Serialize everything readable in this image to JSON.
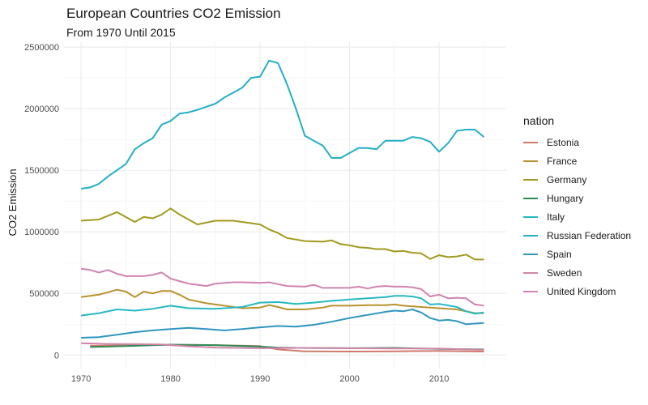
{
  "chart_data": {
    "type": "line",
    "title": "European Countries CO2 Emission",
    "subtitle": "From 1970 Until 2015",
    "xlabel": "",
    "ylabel": "CO2 Emission",
    "xlim": [
      1970,
      2015
    ],
    "ylim": [
      0,
      2500000
    ],
    "x_ticks": [
      1970,
      1980,
      1990,
      2000,
      2010
    ],
    "y_ticks": [
      0,
      500000,
      1000000,
      1500000,
      2000000,
      2500000
    ],
    "y_tick_labels": [
      "0",
      "500000",
      "1000000",
      "1500000",
      "2000000",
      "2500000"
    ],
    "grid": true,
    "legend": {
      "title": "nation",
      "position": "right"
    },
    "series": [
      {
        "name": "Estonia",
        "color": "#D2796B",
        "points": [
          [
            1971,
            75000
          ],
          [
            1975,
            78000
          ],
          [
            1980,
            82000
          ],
          [
            1985,
            80000
          ],
          [
            1990,
            72000
          ],
          [
            1992,
            45000
          ],
          [
            1995,
            30000
          ],
          [
            2000,
            28000
          ],
          [
            2005,
            30000
          ],
          [
            2010,
            33000
          ],
          [
            2015,
            28000
          ]
        ]
      },
      {
        "name": "France",
        "color": "#B9922E",
        "points": [
          [
            1970,
            470000
          ],
          [
            1972,
            490000
          ],
          [
            1974,
            530000
          ],
          [
            1975,
            515000
          ],
          [
            1976,
            470000
          ],
          [
            1977,
            515000
          ],
          [
            1978,
            500000
          ],
          [
            1979,
            520000
          ],
          [
            1980,
            520000
          ],
          [
            1981,
            490000
          ],
          [
            1982,
            450000
          ],
          [
            1984,
            420000
          ],
          [
            1986,
            400000
          ],
          [
            1988,
            380000
          ],
          [
            1990,
            385000
          ],
          [
            1991,
            405000
          ],
          [
            1992,
            390000
          ],
          [
            1993,
            370000
          ],
          [
            1995,
            370000
          ],
          [
            1997,
            385000
          ],
          [
            1998,
            400000
          ],
          [
            2000,
            400000
          ],
          [
            2002,
            405000
          ],
          [
            2004,
            405000
          ],
          [
            2005,
            410000
          ],
          [
            2006,
            400000
          ],
          [
            2008,
            390000
          ],
          [
            2010,
            380000
          ],
          [
            2012,
            370000
          ],
          [
            2014,
            340000
          ],
          [
            2015,
            340000
          ]
        ]
      },
      {
        "name": "Germany",
        "color": "#A29A1E",
        "points": [
          [
            1970,
            1090000
          ],
          [
            1972,
            1100000
          ],
          [
            1973,
            1130000
          ],
          [
            1974,
            1160000
          ],
          [
            1975,
            1120000
          ],
          [
            1976,
            1080000
          ],
          [
            1977,
            1120000
          ],
          [
            1978,
            1110000
          ],
          [
            1979,
            1140000
          ],
          [
            1980,
            1190000
          ],
          [
            1981,
            1140000
          ],
          [
            1982,
            1100000
          ],
          [
            1983,
            1060000
          ],
          [
            1985,
            1090000
          ],
          [
            1987,
            1090000
          ],
          [
            1988,
            1080000
          ],
          [
            1990,
            1060000
          ],
          [
            1991,
            1020000
          ],
          [
            1992,
            990000
          ],
          [
            1993,
            950000
          ],
          [
            1995,
            925000
          ],
          [
            1997,
            920000
          ],
          [
            1998,
            930000
          ],
          [
            1999,
            900000
          ],
          [
            2000,
            890000
          ],
          [
            2001,
            875000
          ],
          [
            2002,
            870000
          ],
          [
            2003,
            860000
          ],
          [
            2004,
            860000
          ],
          [
            2005,
            840000
          ],
          [
            2006,
            845000
          ],
          [
            2007,
            830000
          ],
          [
            2008,
            825000
          ],
          [
            2009,
            780000
          ],
          [
            2010,
            810000
          ],
          [
            2011,
            795000
          ],
          [
            2012,
            800000
          ],
          [
            2013,
            815000
          ],
          [
            2014,
            775000
          ],
          [
            2015,
            775000
          ]
        ]
      },
      {
        "name": "Hungary",
        "color": "#2E8B57",
        "points": [
          [
            1971,
            65000
          ],
          [
            1975,
            72000
          ],
          [
            1980,
            84000
          ],
          [
            1985,
            80000
          ],
          [
            1990,
            68000
          ],
          [
            1992,
            60000
          ],
          [
            1995,
            57000
          ],
          [
            2000,
            55000
          ],
          [
            2005,
            58000
          ],
          [
            2010,
            50000
          ],
          [
            2015,
            45000
          ]
        ]
      },
      {
        "name": "Italy",
        "color": "#26B8C2",
        "points": [
          [
            1970,
            320000
          ],
          [
            1972,
            340000
          ],
          [
            1974,
            370000
          ],
          [
            1976,
            360000
          ],
          [
            1978,
            375000
          ],
          [
            1980,
            400000
          ],
          [
            1982,
            380000
          ],
          [
            1985,
            375000
          ],
          [
            1988,
            390000
          ],
          [
            1990,
            425000
          ],
          [
            1992,
            430000
          ],
          [
            1994,
            415000
          ],
          [
            1996,
            425000
          ],
          [
            1998,
            440000
          ],
          [
            2000,
            450000
          ],
          [
            2002,
            460000
          ],
          [
            2004,
            470000
          ],
          [
            2005,
            480000
          ],
          [
            2006,
            480000
          ],
          [
            2007,
            475000
          ],
          [
            2008,
            460000
          ],
          [
            2009,
            410000
          ],
          [
            2010,
            415000
          ],
          [
            2012,
            390000
          ],
          [
            2013,
            355000
          ],
          [
            2014,
            335000
          ],
          [
            2015,
            345000
          ]
        ]
      },
      {
        "name": "Russian Federation",
        "color": "#23AFC6",
        "points": [
          [
            1970,
            1350000
          ],
          [
            1971,
            1360000
          ],
          [
            1972,
            1390000
          ],
          [
            1973,
            1450000
          ],
          [
            1975,
            1550000
          ],
          [
            1976,
            1670000
          ],
          [
            1977,
            1720000
          ],
          [
            1978,
            1760000
          ],
          [
            1979,
            1870000
          ],
          [
            1980,
            1900000
          ],
          [
            1981,
            1960000
          ],
          [
            1982,
            1970000
          ],
          [
            1983,
            1990000
          ],
          [
            1985,
            2040000
          ],
          [
            1986,
            2090000
          ],
          [
            1987,
            2130000
          ],
          [
            1988,
            2170000
          ],
          [
            1989,
            2250000
          ],
          [
            1990,
            2260000
          ],
          [
            1991,
            2390000
          ],
          [
            1992,
            2370000
          ],
          [
            1993,
            2200000
          ],
          [
            1994,
            2000000
          ],
          [
            1995,
            1780000
          ],
          [
            1996,
            1740000
          ],
          [
            1997,
            1700000
          ],
          [
            1998,
            1600000
          ],
          [
            1999,
            1600000
          ],
          [
            2000,
            1640000
          ],
          [
            2001,
            1680000
          ],
          [
            2002,
            1680000
          ],
          [
            2003,
            1670000
          ],
          [
            2004,
            1740000
          ],
          [
            2005,
            1740000
          ],
          [
            2006,
            1740000
          ],
          [
            2007,
            1770000
          ],
          [
            2008,
            1760000
          ],
          [
            2009,
            1730000
          ],
          [
            2010,
            1650000
          ],
          [
            2011,
            1720000
          ],
          [
            2012,
            1820000
          ],
          [
            2013,
            1830000
          ],
          [
            2014,
            1830000
          ],
          [
            2015,
            1770000
          ]
        ]
      },
      {
        "name": "Spain",
        "color": "#3096BF",
        "points": [
          [
            1970,
            140000
          ],
          [
            1972,
            145000
          ],
          [
            1974,
            165000
          ],
          [
            1976,
            185000
          ],
          [
            1978,
            200000
          ],
          [
            1980,
            210000
          ],
          [
            1982,
            220000
          ],
          [
            1984,
            210000
          ],
          [
            1986,
            200000
          ],
          [
            1988,
            210000
          ],
          [
            1990,
            225000
          ],
          [
            1992,
            235000
          ],
          [
            1994,
            230000
          ],
          [
            1996,
            245000
          ],
          [
            1998,
            270000
          ],
          [
            2000,
            300000
          ],
          [
            2002,
            325000
          ],
          [
            2004,
            350000
          ],
          [
            2005,
            360000
          ],
          [
            2006,
            355000
          ],
          [
            2007,
            370000
          ],
          [
            2008,
            345000
          ],
          [
            2009,
            300000
          ],
          [
            2010,
            280000
          ],
          [
            2011,
            285000
          ],
          [
            2012,
            275000
          ],
          [
            2013,
            250000
          ],
          [
            2014,
            255000
          ],
          [
            2015,
            260000
          ]
        ]
      },
      {
        "name": "Sweden",
        "color": "#D084A8",
        "points": [
          [
            1970,
            95000
          ],
          [
            1973,
            90000
          ],
          [
            1976,
            88000
          ],
          [
            1979,
            86000
          ],
          [
            1982,
            70000
          ],
          [
            1985,
            60000
          ],
          [
            1990,
            55000
          ],
          [
            1995,
            58000
          ],
          [
            2000,
            55000
          ],
          [
            2005,
            53000
          ],
          [
            2010,
            52000
          ],
          [
            2015,
            42000
          ]
        ]
      },
      {
        "name": "United Kingdom",
        "color": "#D183B0",
        "points": [
          [
            1970,
            700000
          ],
          [
            1971,
            690000
          ],
          [
            1972,
            670000
          ],
          [
            1973,
            690000
          ],
          [
            1974,
            660000
          ],
          [
            1975,
            640000
          ],
          [
            1977,
            640000
          ],
          [
            1978,
            650000
          ],
          [
            1979,
            670000
          ],
          [
            1980,
            620000
          ],
          [
            1982,
            580000
          ],
          [
            1984,
            560000
          ],
          [
            1985,
            580000
          ],
          [
            1987,
            590000
          ],
          [
            1988,
            590000
          ],
          [
            1990,
            585000
          ],
          [
            1991,
            590000
          ],
          [
            1992,
            575000
          ],
          [
            1993,
            560000
          ],
          [
            1995,
            555000
          ],
          [
            1996,
            570000
          ],
          [
            1997,
            545000
          ],
          [
            1998,
            545000
          ],
          [
            2000,
            545000
          ],
          [
            2001,
            555000
          ],
          [
            2002,
            540000
          ],
          [
            2003,
            555000
          ],
          [
            2004,
            560000
          ],
          [
            2005,
            555000
          ],
          [
            2006,
            555000
          ],
          [
            2007,
            550000
          ],
          [
            2008,
            535000
          ],
          [
            2009,
            475000
          ],
          [
            2010,
            490000
          ],
          [
            2011,
            460000
          ],
          [
            2012,
            465000
          ],
          [
            2013,
            460000
          ],
          [
            2014,
            410000
          ],
          [
            2015,
            400000
          ]
        ]
      }
    ]
  }
}
